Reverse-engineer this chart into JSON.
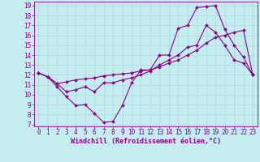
{
  "xlabel": "Windchill (Refroidissement éolien,°C)",
  "bg_color": "#c5ecee",
  "grid_color": "#aad8da",
  "line_color": "#8b008b",
  "xlim": [
    -0.5,
    23.5
  ],
  "ylim": [
    6.8,
    19.4
  ],
  "xticks": [
    0,
    1,
    2,
    3,
    4,
    5,
    6,
    7,
    8,
    9,
    10,
    11,
    12,
    13,
    14,
    15,
    16,
    17,
    18,
    19,
    20,
    21,
    22,
    23
  ],
  "yticks": [
    7,
    8,
    9,
    10,
    11,
    12,
    13,
    14,
    15,
    16,
    17,
    18,
    19
  ],
  "line1_x": [
    0,
    1,
    2,
    3,
    4,
    5,
    6,
    7,
    8,
    9,
    10,
    11,
    12,
    13,
    14,
    15,
    16,
    17,
    18,
    19,
    20,
    21,
    22,
    23
  ],
  "line1_y": [
    12.2,
    11.8,
    10.8,
    9.8,
    8.9,
    9.0,
    8.1,
    7.2,
    7.3,
    8.9,
    11.2,
    12.5,
    12.5,
    14.0,
    14.0,
    16.7,
    17.0,
    18.8,
    18.9,
    19.0,
    16.6,
    15.0,
    13.8,
    12.0
  ],
  "line2_x": [
    0,
    1,
    2,
    3,
    4,
    5,
    6,
    7,
    8,
    9,
    10,
    11,
    12,
    13,
    14,
    15,
    16,
    17,
    18,
    19,
    20,
    21,
    22,
    23
  ],
  "line2_y": [
    12.2,
    11.8,
    11.1,
    11.3,
    11.5,
    11.6,
    11.7,
    11.9,
    12.0,
    12.1,
    12.2,
    12.4,
    12.5,
    12.8,
    13.2,
    13.5,
    14.0,
    14.5,
    15.2,
    15.8,
    16.0,
    16.3,
    16.5,
    12.0
  ],
  "line3_x": [
    0,
    1,
    2,
    3,
    4,
    5,
    6,
    7,
    8,
    9,
    10,
    11,
    12,
    13,
    14,
    15,
    16,
    17,
    18,
    19,
    20,
    21,
    22,
    23
  ],
  "line3_y": [
    12.2,
    11.8,
    11.1,
    10.3,
    10.5,
    10.8,
    10.3,
    11.2,
    11.2,
    11.5,
    11.7,
    12.0,
    12.4,
    13.0,
    13.5,
    14.0,
    14.8,
    15.0,
    17.0,
    16.3,
    15.0,
    13.5,
    13.2,
    12.0
  ],
  "tick_fontsize": 5.5,
  "label_fontsize": 6.0
}
